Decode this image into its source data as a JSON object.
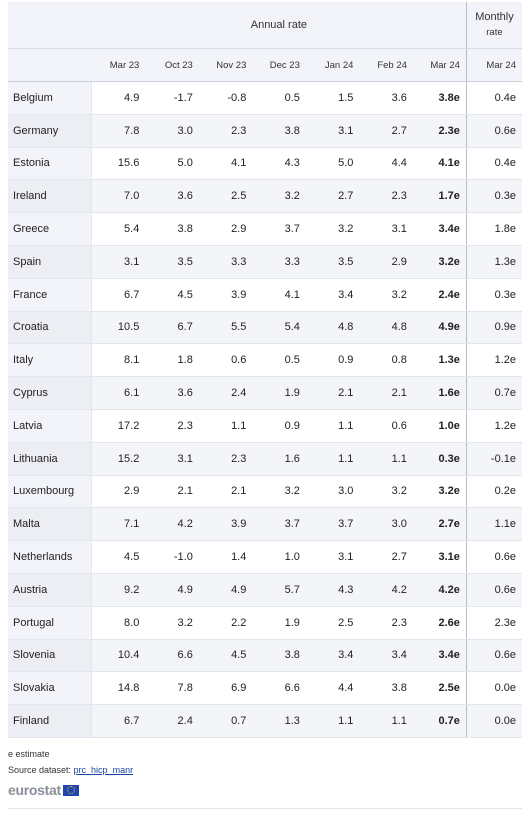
{
  "header": {
    "annual_label": "Annual rate",
    "monthly_label_1": "Monthly",
    "monthly_label_2": "rate",
    "columns": [
      "Mar 23",
      "Oct 23",
      "Nov 23",
      "Dec 23",
      "Jan 24",
      "Feb 24",
      "Mar 24",
      "Mar 24"
    ]
  },
  "rows": [
    {
      "country": "Belgium",
      "values": [
        "4.9",
        "-1.7",
        "-0.8",
        "0.5",
        "1.5",
        "3.6",
        "3.8e",
        "0.4e"
      ]
    },
    {
      "country": "Germany",
      "values": [
        "7.8",
        "3.0",
        "2.3",
        "3.8",
        "3.1",
        "2.7",
        "2.3e",
        "0.6e"
      ]
    },
    {
      "country": "Estonia",
      "values": [
        "15.6",
        "5.0",
        "4.1",
        "4.3",
        "5.0",
        "4.4",
        "4.1e",
        "0.4e"
      ]
    },
    {
      "country": "Ireland",
      "values": [
        "7.0",
        "3.6",
        "2.5",
        "3.2",
        "2.7",
        "2.3",
        "1.7e",
        "0.3e"
      ]
    },
    {
      "country": "Greece",
      "values": [
        "5.4",
        "3.8",
        "2.9",
        "3.7",
        "3.2",
        "3.1",
        "3.4e",
        "1.8e"
      ]
    },
    {
      "country": "Spain",
      "values": [
        "3.1",
        "3.5",
        "3.3",
        "3.3",
        "3.5",
        "2.9",
        "3.2e",
        "1.3e"
      ]
    },
    {
      "country": "France",
      "values": [
        "6.7",
        "4.5",
        "3.9",
        "4.1",
        "3.4",
        "3.2",
        "2.4e",
        "0.3e"
      ]
    },
    {
      "country": "Croatia",
      "values": [
        "10.5",
        "6.7",
        "5.5",
        "5.4",
        "4.8",
        "4.8",
        "4.9e",
        "0.9e"
      ]
    },
    {
      "country": "Italy",
      "values": [
        "8.1",
        "1.8",
        "0.6",
        "0.5",
        "0.9",
        "0.8",
        "1.3e",
        "1.2e"
      ]
    },
    {
      "country": "Cyprus",
      "values": [
        "6.1",
        "3.6",
        "2.4",
        "1.9",
        "2.1",
        "2.1",
        "1.6e",
        "0.7e"
      ]
    },
    {
      "country": "Latvia",
      "values": [
        "17.2",
        "2.3",
        "1.1",
        "0.9",
        "1.1",
        "0.6",
        "1.0e",
        "1.2e"
      ]
    },
    {
      "country": "Lithuania",
      "values": [
        "15.2",
        "3.1",
        "2.3",
        "1.6",
        "1.1",
        "1.1",
        "0.3e",
        "-0.1e"
      ]
    },
    {
      "country": "Luxembourg",
      "values": [
        "2.9",
        "2.1",
        "2.1",
        "3.2",
        "3.0",
        "3.2",
        "3.2e",
        "0.2e"
      ]
    },
    {
      "country": "Malta",
      "values": [
        "7.1",
        "4.2",
        "3.9",
        "3.7",
        "3.7",
        "3.0",
        "2.7e",
        "1.1e"
      ]
    },
    {
      "country": "Netherlands",
      "values": [
        "4.5",
        "-1.0",
        "1.4",
        "1.0",
        "3.1",
        "2.7",
        "3.1e",
        "0.6e"
      ]
    },
    {
      "country": "Austria",
      "values": [
        "9.2",
        "4.9",
        "4.9",
        "5.7",
        "4.3",
        "4.2",
        "4.2e",
        "0.6e"
      ]
    },
    {
      "country": "Portugal",
      "values": [
        "8.0",
        "3.2",
        "2.2",
        "1.9",
        "2.5",
        "2.3",
        "2.6e",
        "2.3e"
      ]
    },
    {
      "country": "Slovenia",
      "values": [
        "10.4",
        "6.6",
        "4.5",
        "3.8",
        "3.4",
        "3.4",
        "3.4e",
        "0.6e"
      ]
    },
    {
      "country": "Slovakia",
      "values": [
        "14.8",
        "7.8",
        "6.9",
        "6.6",
        "4.4",
        "3.8",
        "2.5e",
        "0.0e"
      ]
    },
    {
      "country": "Finland",
      "values": [
        "6.7",
        "2.4",
        "0.7",
        "1.3",
        "1.1",
        "1.1",
        "0.7e",
        "0.0e"
      ]
    }
  ],
  "footer": {
    "note": "e estimate",
    "source_prefix": "Source dataset: ",
    "source_link": "prc_hicp_manr",
    "logo_text": "eurostat"
  },
  "icons": {
    "logo_flag": "eu-flag-icon"
  }
}
